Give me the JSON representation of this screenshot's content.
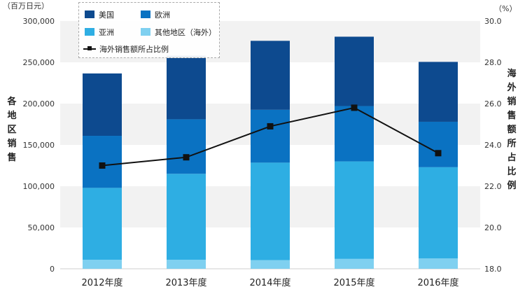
{
  "chart_data": {
    "type": "bar",
    "stacked": true,
    "categories": [
      "2012年度",
      "2013年度",
      "2014年度",
      "2015年度",
      "2016年度"
    ],
    "series": [
      {
        "name": "其他地区（海外）",
        "color": "#7fd0f0",
        "values": [
          11000,
          11000,
          10500,
          12000,
          12500
        ]
      },
      {
        "name": "亚洲",
        "color": "#2eaee3",
        "values": [
          87000,
          104000,
          118000,
          118000,
          110500
        ]
      },
      {
        "name": "欧洲",
        "color": "#0a72c2",
        "values": [
          63000,
          66000,
          64000,
          67000,
          55000
        ]
      },
      {
        "name": "美国",
        "color": "#0d4a8f",
        "values": [
          75500,
          77000,
          83500,
          84000,
          72500
        ]
      }
    ],
    "line_series": {
      "name": "海外销售额所占比例",
      "color": "#111111",
      "values": [
        23.0,
        23.4,
        24.9,
        25.8,
        23.6
      ]
    },
    "ylim": [
      0,
      300000
    ],
    "y_ticks": [
      "0",
      "50,000",
      "100,000",
      "150,000",
      "200,000",
      "250,000",
      "300,000"
    ],
    "y2lim": [
      18.0,
      30.0
    ],
    "y2_ticks": [
      "18.0",
      "20.0",
      "22.0",
      "24.0",
      "26.0",
      "28.0",
      "30.0"
    ],
    "ylabel": "各地区销售",
    "y2label": "海外销售额所占比例",
    "y_unit": "（百万日元）",
    "y2_unit": "（%）",
    "legend": {
      "placement": "top-left",
      "items": [
        "美国",
        "欧洲",
        "亚洲",
        "其他地区（海外）",
        "海外销售额所占比例"
      ]
    },
    "grid": "alternating horizontal bands"
  }
}
